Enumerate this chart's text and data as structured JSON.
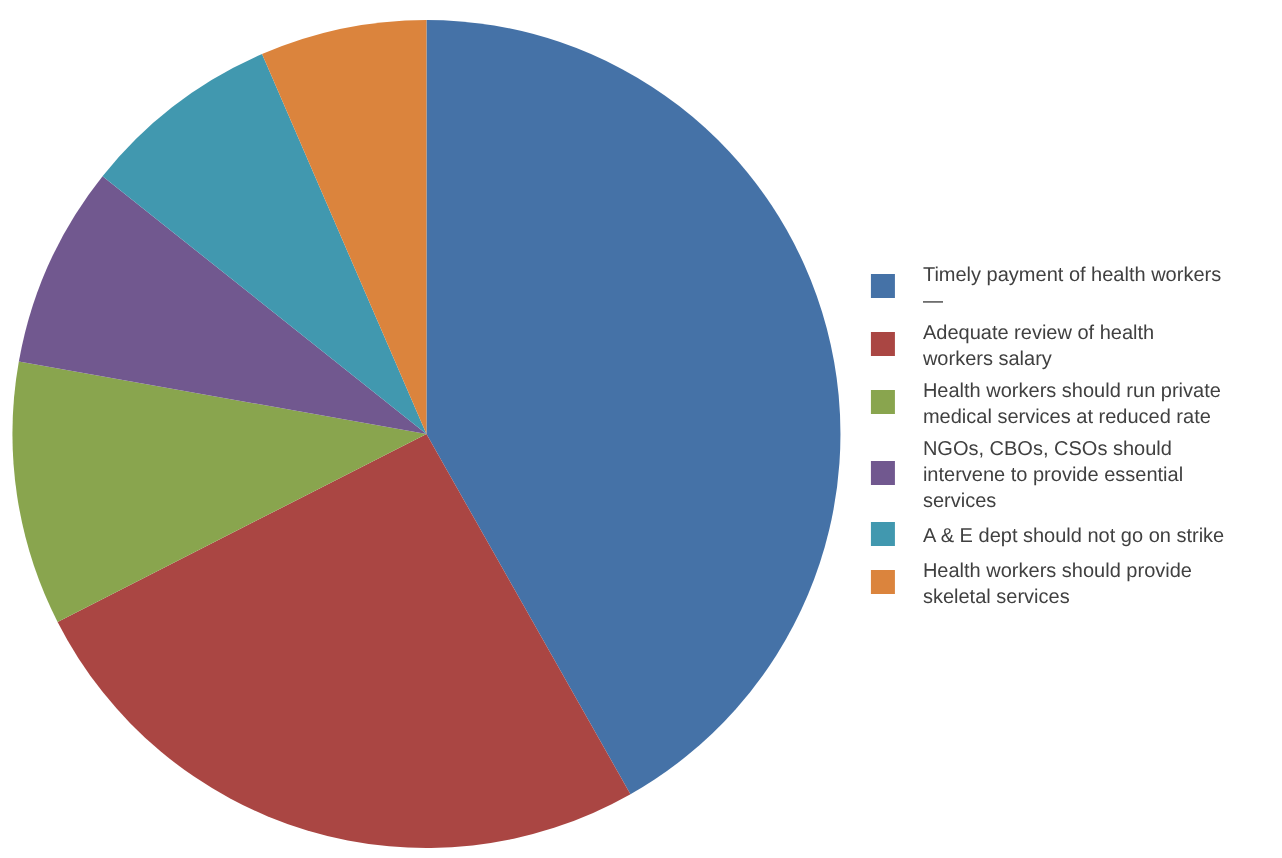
{
  "chart_data": {
    "type": "pie",
    "categories": [
      "Timely payment of health workers\n—",
      "Adequate review of health\nworkers salary",
      "Health workers should run private\nmedical services at reduced rate",
      "NGOs, CBOs, CSOs should\nintervene to provide essential\nservices",
      "A & E dept should not go on strike",
      "Health workers should provide\nskeletal services"
    ],
    "values": [
      41.8,
      25.7,
      10.3,
      7.9,
      7.8,
      6.5
    ],
    "colors": [
      "#4572a7",
      "#aa4643",
      "#89a54e",
      "#71588f",
      "#4198af",
      "#db843d"
    ],
    "legend": "right"
  }
}
